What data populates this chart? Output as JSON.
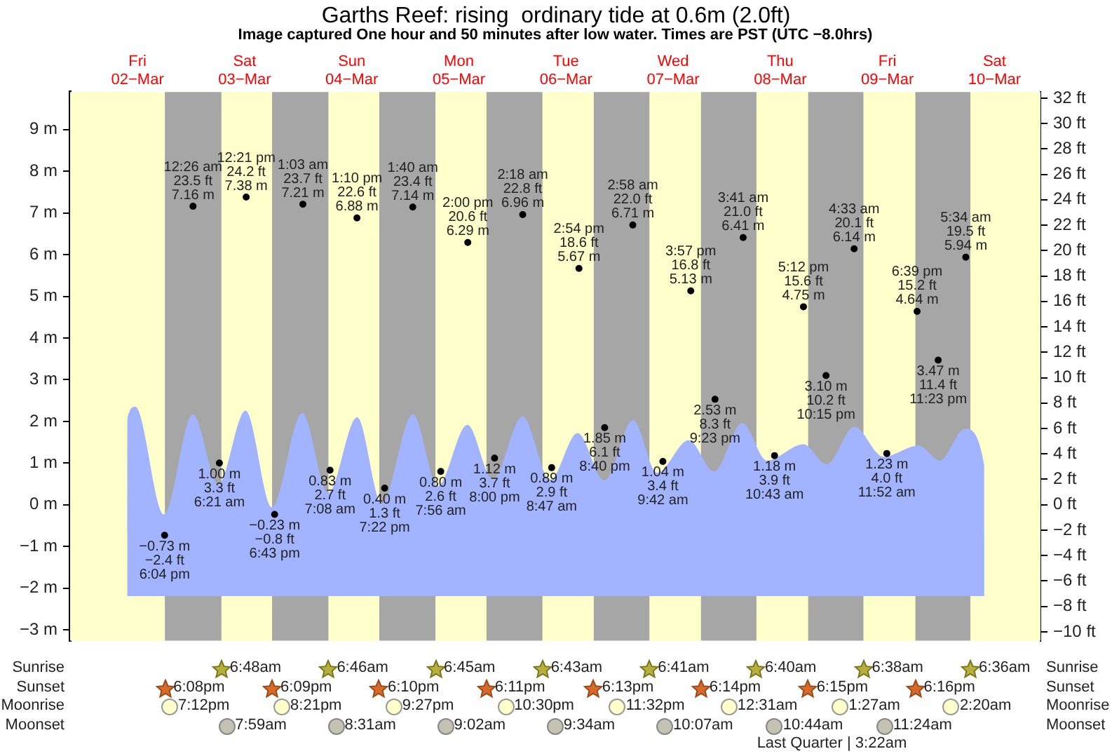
{
  "chart_data": {
    "type": "area",
    "title": "Garths Reef: rising  ordinary tide at 0.6m (2.0ft)",
    "subtitle": "Image captured One hour and 50 minutes after low water. Times are PST (UTC −8.0hrs)",
    "xlim": [
      "--03-01T20:54",
      "--03-10T22:18"
    ],
    "xticks": [
      {
        "value": "--03-02T12:00",
        "label": "Fri\n02−Mar"
      },
      {
        "value": "--03-03T12:00",
        "label": "Sat\n03−Mar"
      },
      {
        "value": "--03-04T12:00",
        "label": "Sun\n04−Mar"
      },
      {
        "value": "--03-05T12:00",
        "label": "Mon\n05−Mar"
      },
      {
        "value": "--03-06T12:00",
        "label": "Tue\n06−Mar"
      },
      {
        "value": "--03-07T12:00",
        "label": "Wed\n07−Mar"
      },
      {
        "value": "--03-08T12:00",
        "label": "Thu\n08−Mar"
      },
      {
        "value": "--03-09T12:00",
        "label": "Fri\n09−Mar"
      },
      {
        "value": "--03-10T12:00",
        "label": "Sat\n10−Mar"
      }
    ],
    "ylim": [
      -3.26,
      9.9
    ],
    "yticks": [
      {
        "value": -3,
        "label": "−3 m"
      },
      {
        "value": -2,
        "label": "−2 m"
      },
      {
        "value": -1,
        "label": "−1 m"
      },
      {
        "value": 0,
        "label": "0 m"
      },
      {
        "value": 1,
        "label": "1 m"
      },
      {
        "value": 2,
        "label": "2 m"
      },
      {
        "value": 3,
        "label": "3 m"
      },
      {
        "value": 4,
        "label": "4 m"
      },
      {
        "value": 5,
        "label": "5 m"
      },
      {
        "value": 6,
        "label": "6 m"
      },
      {
        "value": 7,
        "label": "7 m"
      },
      {
        "value": 8,
        "label": "8 m"
      },
      {
        "value": 9,
        "label": "9 m"
      }
    ],
    "y2lim": [
      -10.7,
      32.48
    ],
    "y2ticks": [
      {
        "value": -10,
        "label": "−10 ft"
      },
      {
        "value": -8,
        "label": "−8 ft"
      },
      {
        "value": -6,
        "label": "−6 ft"
      },
      {
        "value": -4,
        "label": "−4 ft"
      },
      {
        "value": -2,
        "label": "−2 ft"
      },
      {
        "value": 0,
        "label": "0 ft"
      },
      {
        "value": 2,
        "label": "2 ft"
      },
      {
        "value": 4,
        "label": "4 ft"
      },
      {
        "value": 6,
        "label": "6 ft"
      },
      {
        "value": 8,
        "label": "8 ft"
      },
      {
        "value": 10,
        "label": "10 ft"
      },
      {
        "value": 12,
        "label": "12 ft"
      },
      {
        "value": 14,
        "label": "14 ft"
      },
      {
        "value": 16,
        "label": "16 ft"
      },
      {
        "value": 18,
        "label": "18 ft"
      },
      {
        "value": 20,
        "label": "20 ft"
      },
      {
        "value": 22,
        "label": "22 ft"
      },
      {
        "value": 24,
        "label": "24 ft"
      },
      {
        "value": 26,
        "label": "26 ft"
      },
      {
        "value": 28,
        "label": "28 ft"
      },
      {
        "value": 30,
        "label": "30 ft"
      },
      {
        "value": 32,
        "label": "32 ft"
      }
    ],
    "grid": false,
    "bands": [
      {
        "axis": "x",
        "from": "--03-02T18:08",
        "to": "--03-03T06:48",
        "color": "#a6a6a6"
      },
      {
        "axis": "x",
        "from": "--03-03T18:09",
        "to": "--03-04T06:46",
        "color": "#a6a6a6"
      },
      {
        "axis": "x",
        "from": "--03-04T18:10",
        "to": "--03-05T06:45",
        "color": "#a6a6a6"
      },
      {
        "axis": "x",
        "from": "--03-05T18:11",
        "to": "--03-06T06:43",
        "color": "#a6a6a6"
      },
      {
        "axis": "x",
        "from": "--03-06T18:13",
        "to": "--03-07T06:41",
        "color": "#a6a6a6"
      },
      {
        "axis": "x",
        "from": "--03-07T18:14",
        "to": "--03-08T06:40",
        "color": "#a6a6a6"
      },
      {
        "axis": "x",
        "from": "--03-08T18:15",
        "to": "--03-09T06:38",
        "color": "#a6a6a6"
      },
      {
        "axis": "x",
        "from": "--03-09T18:16",
        "to": "--03-10T06:36",
        "color": "#a6a6a6"
      }
    ],
    "series": [
      {
        "color": "#a2b4ff",
        "x": [
          "--03-02T09:41",
          "--03-02T09:42",
          "--03-02T11:30",
          "--03-02T17:54",
          "--03-03T00:24",
          "--03-03T06:06",
          "--03-03T12:12",
          "--03-03T18:06",
          "--03-04T00:54",
          "--03-04T06:42",
          "--03-04T13:12",
          "--03-04T18:42",
          "--03-05T01:42",
          "--03-05T07:18",
          "--03-05T13:54",
          "--03-05T19:36",
          "--03-06T02:18",
          "--03-06T08:24",
          "--03-06T14:36",
          "--03-06T20:36",
          "--03-07T03:00",
          "--03-07T08:24",
          "--03-07T15:30",
          "--03-07T21:12",
          "--03-08T03:30",
          "--03-08T09:00",
          "--03-08T17:12",
          "--03-08T22:24",
          "--03-09T04:36",
          "--03-09T11:06",
          "--03-09T19:00",
          "--03-09T23:42",
          "--03-10T05:24",
          "--03-10T09:42",
          "--03-10T09:43"
        ],
        "values": [
          -2.19,
          2.06,
          2.35,
          -0.23,
          2.17,
          0.5,
          2.26,
          -0.06,
          2.2,
          0.29,
          2.1,
          0.03,
          2.17,
          0.45,
          1.92,
          0.61,
          2.12,
          0.6,
          1.72,
          0.58,
          2.03,
          0.77,
          1.55,
          0.8,
          1.96,
          1.06,
          1.45,
          0.97,
          1.87,
          1.15,
          1.42,
          1.06,
          1.82,
          0.94,
          -2.19
        ],
        "marker": "none"
      },
      {
        "type": "scatter",
        "color": "#000000",
        "marker": "circle",
        "x": [
          "--03-02T18:04",
          "--03-03T00:26",
          "--03-03T06:21",
          "--03-03T12:21",
          "--03-03T18:43",
          "--03-04T01:03",
          "--03-04T07:08",
          "--03-04T13:10",
          "--03-04T19:22",
          "--03-05T01:40",
          "--03-05T07:56",
          "--03-05T14:00",
          "--03-05T20:00",
          "--03-06T02:18",
          "--03-06T08:47",
          "--03-06T14:54",
          "--03-06T20:40",
          "--03-07T02:58",
          "--03-07T09:42",
          "--03-07T15:57",
          "--03-07T21:23",
          "--03-08T03:41",
          "--03-08T10:43",
          "--03-08T17:12",
          "--03-08T22:15",
          "--03-09T04:33",
          "--03-09T11:52",
          "--03-09T18:39",
          "--03-09T23:23",
          "--03-10T05:34"
        ],
        "values": [
          -0.73,
          7.16,
          1.0,
          7.38,
          -0.23,
          7.21,
          0.83,
          6.88,
          0.4,
          7.14,
          0.8,
          6.29,
          1.12,
          6.96,
          0.89,
          5.67,
          1.85,
          6.71,
          1.04,
          5.13,
          2.53,
          6.41,
          1.18,
          4.75,
          3.1,
          6.14,
          1.23,
          4.64,
          3.47,
          5.94
        ],
        "value_labels": [
          "−0.73 m\n−2.4 ft\n6:04 pm",
          "12:26 am\n23.5 ft\n7.16 m",
          "1.00 m\n3.3 ft\n6:21 am",
          "12:21 pm\n24.2 ft\n7.38 m",
          "−0.23 m\n−0.8 ft\n6:43 pm",
          "1:03 am\n23.7 ft\n7.21 m",
          "0.83 m\n2.7 ft\n7:08 am",
          "1:10 pm\n22.6 ft\n6.88 m",
          "0.40 m\n1.3 ft\n7:22 pm",
          "1:40 am\n23.4 ft\n7.14 m",
          "0.80 m\n2.6 ft\n7:56 am",
          "2:00 pm\n20.6 ft\n6.29 m",
          "1.12 m\n3.7 ft\n8:00 pm",
          "2:18 am\n22.8 ft\n6.96 m",
          "0.89 m\n2.9 ft\n8:47 am",
          "2:54 pm\n18.6 ft\n5.67 m",
          "1.85 m\n6.1 ft\n8:40 pm",
          "2:58 am\n22.0 ft\n6.71 m",
          "1.04 m\n3.4 ft\n9:42 am",
          "3:57 pm\n16.8 ft\n5.13 m",
          "2.53 m\n8.3 ft\n9:23 pm",
          "3:41 am\n21.0 ft\n6.41 m",
          "1.18 m\n3.9 ft\n10:43 am",
          "5:12 pm\n15.6 ft\n4.75 m",
          "3.10 m\n10.2 ft\n10:15 pm",
          "4:33 am\n20.1 ft\n6.14 m",
          "1.23 m\n4.0 ft\n11:52 am",
          "6:39 pm\n15.2 ft\n4.64 m",
          "3.47 m\n11.4 ft\n11:23 pm",
          "5:34 am\n19.5 ft\n5.94 m"
        ]
      }
    ],
    "annotations": [
      "Sunrise",
      "6:48am",
      "6:46am",
      "6:45am",
      "6:43am",
      "6:41am",
      "6:40am",
      "6:38am",
      "6:36am",
      "Sunset",
      "6:08pm",
      "6:09pm",
      "6:10pm",
      "6:11pm",
      "6:13pm",
      "6:14pm",
      "6:15pm",
      "6:16pm",
      "Moonrise",
      "7:12pm",
      "8:21pm",
      "9:27pm",
      "10:30pm",
      "11:32pm",
      "12:31am",
      "1:27am",
      "2:20am",
      "Moonset",
      "7:59am",
      "8:31am",
      "9:02am",
      "9:34am",
      "10:07am",
      "10:44am",
      "11:24am",
      "Last Quarter | 3:22am"
    ]
  }
}
